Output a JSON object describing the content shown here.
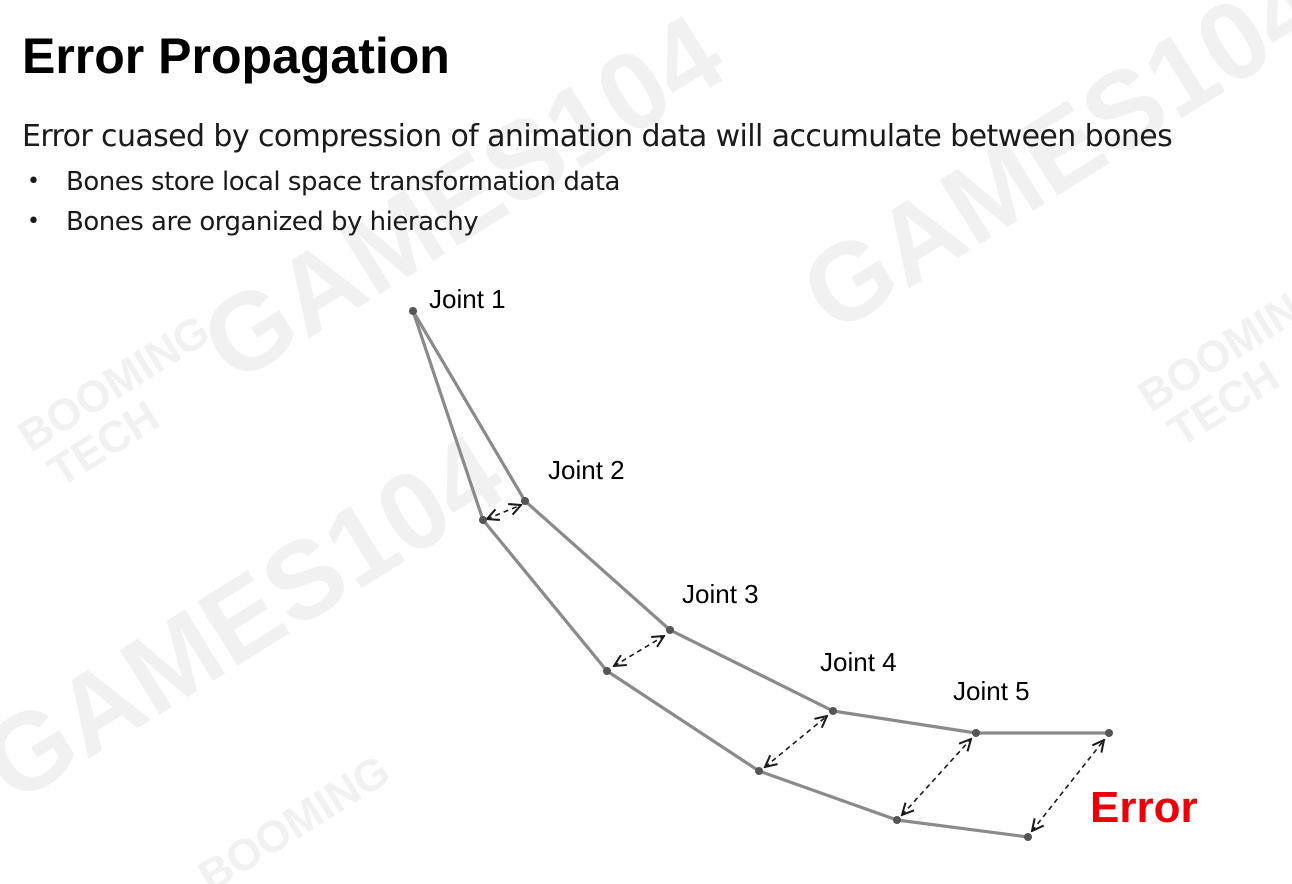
{
  "slide": {
    "title": "Error Propagation",
    "subtitle": "Error cuased by compression of animation data will accumulate between bones",
    "bullets": [
      "Bones store local space transformation data",
      "Bones are organized by hierachy"
    ],
    "bullet_glyph": "•"
  },
  "watermarks": {
    "games": "GAMES104",
    "booming": "BOOMING",
    "tech": "TECH"
  },
  "diagram": {
    "joint_labels": [
      "Joint 1",
      "Joint 2",
      "Joint 3",
      "Joint 4",
      "Joint 5"
    ],
    "error_label": "Error",
    "colors": {
      "bone": "#8a8a8a",
      "joint": "#555555",
      "arrow": "#1a1a1a",
      "error": "#e8000b"
    }
  }
}
